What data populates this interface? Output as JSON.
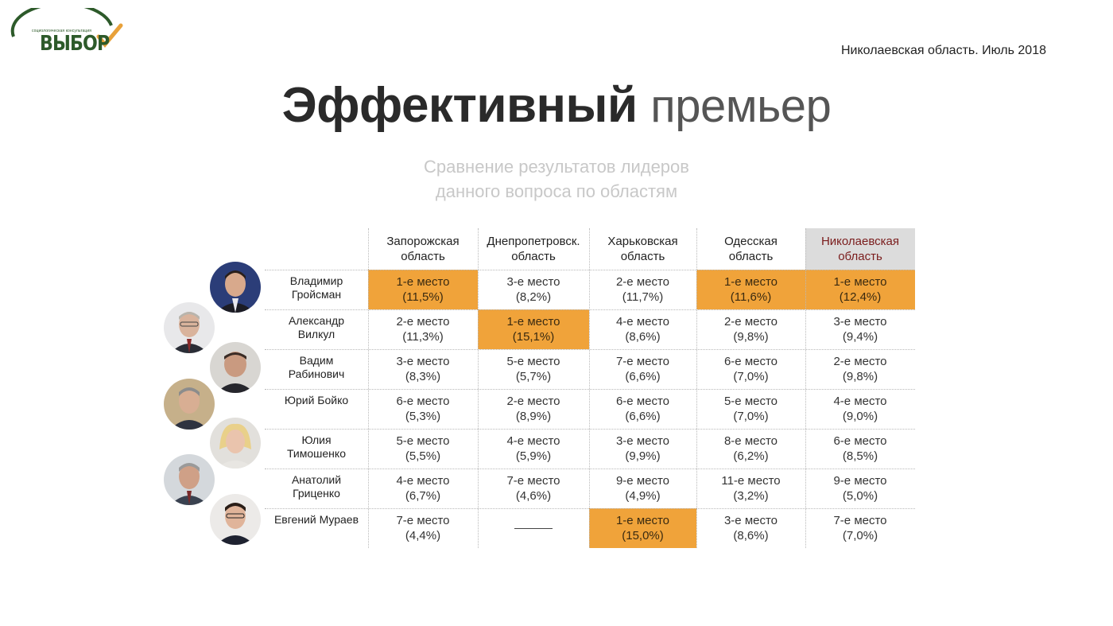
{
  "logo": {
    "small_text": "социологическая консультация",
    "name": "ВЫБОР"
  },
  "header": {
    "region_date": "Николаевская область. Июль 2018"
  },
  "title": {
    "bold": "Эффективный",
    "light": "премьер"
  },
  "subtitle": {
    "line1": "Сравнение результатов лидеров",
    "line2": "данного вопроса по областям"
  },
  "colors": {
    "highlight": "#f0a33a",
    "target_header_bg": "#dcdcdc",
    "target_header_text": "#7a1c1c",
    "logo_green": "#2d5a2a"
  },
  "table": {
    "columns": [
      {
        "line1": "Запорожская",
        "line2": "область"
      },
      {
        "line1": "Днепропетровск.",
        "line2": "область"
      },
      {
        "line1": "Харьковская",
        "line2": "область"
      },
      {
        "line1": "Одесская",
        "line2": "область"
      },
      {
        "line1": "Николаевская",
        "line2": "область"
      }
    ],
    "rows": [
      {
        "name_line1": "Владимир",
        "name_line2": "Гройсман",
        "cells": [
          {
            "place": "1-е место",
            "pct": "(11,5%)",
            "highlight": true
          },
          {
            "place": "3-е место",
            "pct": "(8,2%)",
            "highlight": false
          },
          {
            "place": "2-е место",
            "pct": "(11,7%)",
            "highlight": false
          },
          {
            "place": "1-е место",
            "pct": "(11,6%)",
            "highlight": true
          },
          {
            "place": "1-е место",
            "pct": "(12,4%)",
            "highlight": true
          }
        ]
      },
      {
        "name_line1": "Александр",
        "name_line2": "Вилкул",
        "cells": [
          {
            "place": "2-е место",
            "pct": "(11,3%)",
            "highlight": false
          },
          {
            "place": "1-е место",
            "pct": "(15,1%)",
            "highlight": true
          },
          {
            "place": "4-е место",
            "pct": "(8,6%)",
            "highlight": false
          },
          {
            "place": "2-е место",
            "pct": "(9,8%)",
            "highlight": false
          },
          {
            "place": "3-е место",
            "pct": "(9,4%)",
            "highlight": false
          }
        ]
      },
      {
        "name_line1": "Вадим",
        "name_line2": "Рабинович",
        "cells": [
          {
            "place": "3-е место",
            "pct": "(8,3%)",
            "highlight": false
          },
          {
            "place": "5-е место",
            "pct": "(5,7%)",
            "highlight": false
          },
          {
            "place": "7-е место",
            "pct": "(6,6%)",
            "highlight": false
          },
          {
            "place": "6-е место",
            "pct": "(7,0%)",
            "highlight": false
          },
          {
            "place": "2-е место",
            "pct": "(9,8%)",
            "highlight": false
          }
        ]
      },
      {
        "name_line1": "Юрий Бойко",
        "name_line2": "",
        "cells": [
          {
            "place": "6-е место",
            "pct": "(5,3%)",
            "highlight": false
          },
          {
            "place": "2-е место",
            "pct": "(8,9%)",
            "highlight": false
          },
          {
            "place": "6-е место",
            "pct": "(6,6%)",
            "highlight": false
          },
          {
            "place": "5-е место",
            "pct": "(7,0%)",
            "highlight": false
          },
          {
            "place": "4-е место",
            "pct": "(9,0%)",
            "highlight": false
          }
        ]
      },
      {
        "name_line1": "Юлия",
        "name_line2": "Тимошенко",
        "cells": [
          {
            "place": "5-е место",
            "pct": "(5,5%)",
            "highlight": false
          },
          {
            "place": "4-е место",
            "pct": "(5,9%)",
            "highlight": false
          },
          {
            "place": "3-е место",
            "pct": "(9,9%)",
            "highlight": false
          },
          {
            "place": "8-е место",
            "pct": "(6,2%)",
            "highlight": false
          },
          {
            "place": "6-е место",
            "pct": "(8,5%)",
            "highlight": false
          }
        ]
      },
      {
        "name_line1": "Анатолий",
        "name_line2": "Гриценко",
        "cells": [
          {
            "place": "4-е место",
            "pct": "(6,7%)",
            "highlight": false
          },
          {
            "place": "7-е место",
            "pct": "(4,6%)",
            "highlight": false
          },
          {
            "place": "9-е место",
            "pct": "(4,9%)",
            "highlight": false
          },
          {
            "place": "11-е место",
            "pct": "(3,2%)",
            "highlight": false
          },
          {
            "place": "9-е место",
            "pct": "(5,0%)",
            "highlight": false
          }
        ]
      },
      {
        "name_line1": "Евгений Мураев",
        "name_line2": "",
        "cells": [
          {
            "place": "7-е место",
            "pct": "(4,4%)",
            "highlight": false
          },
          {
            "place": "",
            "pct": "",
            "highlight": false,
            "dash": true
          },
          {
            "place": "1-е место",
            "pct": "(15,0%)",
            "highlight": true
          },
          {
            "place": "3-е место",
            "pct": "(8,6%)",
            "highlight": false
          },
          {
            "place": "7-е место",
            "pct": "(7,0%)",
            "highlight": false
          }
        ]
      }
    ]
  }
}
